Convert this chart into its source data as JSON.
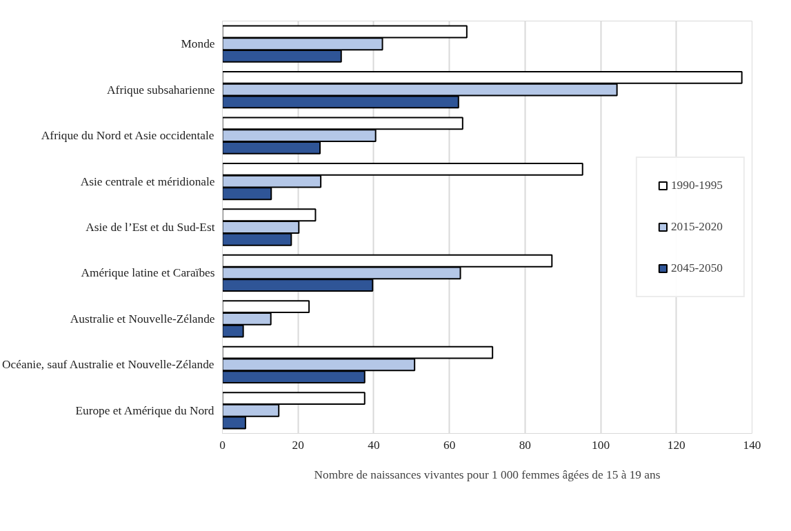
{
  "chart_data": {
    "type": "bar",
    "orientation": "horizontal",
    "categories": [
      "Monde",
      "Afrique subsaharienne",
      "Afrique du Nord et Asie occidentale",
      "Asie centrale et méridionale",
      "Asie de l’Est et du Sud-Est",
      "Amérique latine et Caraïbes",
      "Australie et Nouvelle-Zélande",
      "Océanie, sauf Australie et Nouvelle-Zélande",
      "Europe et Amérique du Nord"
    ],
    "series": [
      {
        "name": "1990-1995",
        "color": "#ffffff",
        "values": [
          64.6,
          137.3,
          63.5,
          95.2,
          24.6,
          87.1,
          22.9,
          71.4,
          37.6
        ]
      },
      {
        "name": "2015-2020",
        "color": "#b4c7e7",
        "values": [
          42.3,
          104.3,
          40.5,
          26.0,
          20.2,
          62.9,
          12.8,
          50.8,
          14.9
        ]
      },
      {
        "name": "2045-2050",
        "color": "#2f5597",
        "values": [
          31.4,
          62.4,
          25.8,
          12.9,
          18.2,
          39.7,
          5.5,
          37.6,
          6.1
        ]
      }
    ],
    "xlabel": "Nombre de naissances vivantes pour 1 000 femmes âgées de 15 à 19 ans",
    "xlim": [
      0,
      140
    ],
    "xticks": [
      0,
      20,
      40,
      60,
      80,
      100,
      120,
      140
    ],
    "grid": "x",
    "legend": "right"
  }
}
